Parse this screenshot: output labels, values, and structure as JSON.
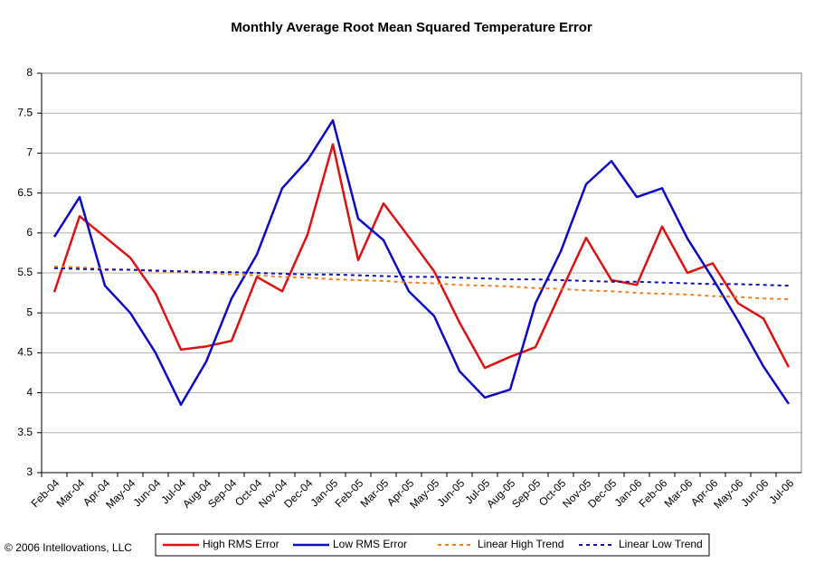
{
  "chart_data": {
    "type": "line",
    "title": "Monthly Average Root Mean Squared Temperature Error",
    "footnote": "© 2006 Intellovations, LLC",
    "categories": [
      "Feb-04",
      "Mar-04",
      "Apr-04",
      "May-04",
      "Jun-04",
      "Jul-04",
      "Aug-04",
      "Sep-04",
      "Oct-04",
      "Nov-04",
      "Dec-04",
      "Jan-05",
      "Feb-05",
      "Mar-05",
      "Apr-05",
      "May-05",
      "Jun-05",
      "Jul-05",
      "Aug-05",
      "Sep-05",
      "Oct-05",
      "Nov-05",
      "Dec-05",
      "Jan-06",
      "Feb-06",
      "Mar-06",
      "Apr-06",
      "May-06",
      "Jun-06",
      "Jul-06"
    ],
    "series": [
      {
        "name": "High RMS Error",
        "color": "#e01010",
        "dashed": false,
        "values": [
          5.26,
          6.21,
          5.95,
          5.69,
          5.24,
          4.54,
          4.58,
          4.65,
          5.45,
          5.27,
          5.98,
          7.11,
          5.66,
          6.37,
          5.95,
          5.52,
          4.88,
          4.31,
          4.45,
          4.57,
          5.26,
          5.94,
          5.41,
          5.35,
          6.08,
          5.5,
          5.62,
          5.12,
          4.93,
          4.32
        ]
      },
      {
        "name": "Low RMS Error",
        "color": "#0a0ac8",
        "dashed": false,
        "values": [
          5.95,
          6.45,
          5.34,
          5.0,
          4.5,
          3.85,
          4.39,
          5.18,
          5.73,
          6.56,
          6.91,
          7.41,
          6.18,
          5.91,
          5.27,
          4.96,
          4.27,
          3.94,
          4.04,
          5.12,
          5.77,
          6.61,
          6.9,
          6.45,
          6.56,
          5.93,
          5.43,
          4.9,
          4.33,
          3.86
        ]
      },
      {
        "name": "Linear High Trend",
        "color": "#f08020",
        "dashed": true,
        "values": [
          5.58,
          5.57,
          5.55,
          5.54,
          5.52,
          5.51,
          5.5,
          5.48,
          5.47,
          5.45,
          5.44,
          5.42,
          5.41,
          5.4,
          5.38,
          5.37,
          5.35,
          5.34,
          5.33,
          5.31,
          5.3,
          5.28,
          5.27,
          5.25,
          5.24,
          5.23,
          5.21,
          5.2,
          5.18,
          5.17
        ]
      },
      {
        "name": "Linear Low Trend",
        "color": "#1010b0",
        "dashed": true,
        "values": [
          5.56,
          5.55,
          5.54,
          5.54,
          5.53,
          5.52,
          5.51,
          5.51,
          5.5,
          5.49,
          5.48,
          5.48,
          5.47,
          5.46,
          5.45,
          5.45,
          5.44,
          5.43,
          5.42,
          5.42,
          5.41,
          5.4,
          5.39,
          5.39,
          5.38,
          5.37,
          5.36,
          5.36,
          5.35,
          5.34
        ]
      }
    ],
    "ylim": [
      3,
      8
    ],
    "yticks": [
      3,
      3.5,
      4,
      4.5,
      5,
      5.5,
      6,
      6.5,
      7,
      7.5,
      8
    ],
    "grid": true
  }
}
